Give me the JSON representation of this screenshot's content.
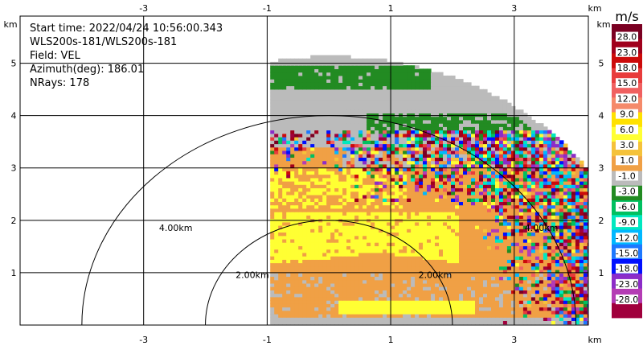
{
  "chart_data": {
    "type": "heatmap",
    "info": {
      "start_time": "Start time: 2022/04/24 10:56:00.343",
      "instrument": "WLS200s-181/WLS200s-181",
      "field": "Field: VEL",
      "azimuth": "Azimuth(deg): 186.01",
      "nrays": "NRays: 178"
    },
    "x_unit": "km",
    "y_unit": "km",
    "x_ticks": [
      "-3",
      "-1",
      "1",
      "3"
    ],
    "y_ticks": [
      "1",
      "2",
      "3",
      "4",
      "5"
    ],
    "xlim": [
      -5,
      4.2
    ],
    "ylim": [
      0,
      5.9
    ],
    "grid": true,
    "range_rings": [
      {
        "radius": 2,
        "label": "2.00km"
      },
      {
        "radius": 4,
        "label": "4.00km"
      }
    ],
    "sector_max_range": 5.1,
    "colorbar": {
      "unit": "m/s",
      "ticks": [
        "28.0",
        "23.0",
        "18.0",
        "15.0",
        "12.0",
        "9.0",
        "6.0",
        "3.0",
        "1.0",
        "-1.0",
        "-3.0",
        "-6.0",
        "-9.0",
        "-12.0",
        "-15.0",
        "-18.0",
        "-23.0",
        "-28.0"
      ],
      "colors": [
        "#7a0022",
        "#a0001c",
        "#cc0a0a",
        "#e83c3c",
        "#f06060",
        "#f58a6a",
        "#ffe100",
        "#ffff33",
        "#f5c23a",
        "#f0a045",
        "#bbbbbb",
        "#228b22",
        "#00c060",
        "#00e8c0",
        "#00b8ff",
        "#1e78ff",
        "#0010ff",
        "#8c2cc8",
        "#b43cb4",
        "#a0003c"
      ]
    }
  }
}
